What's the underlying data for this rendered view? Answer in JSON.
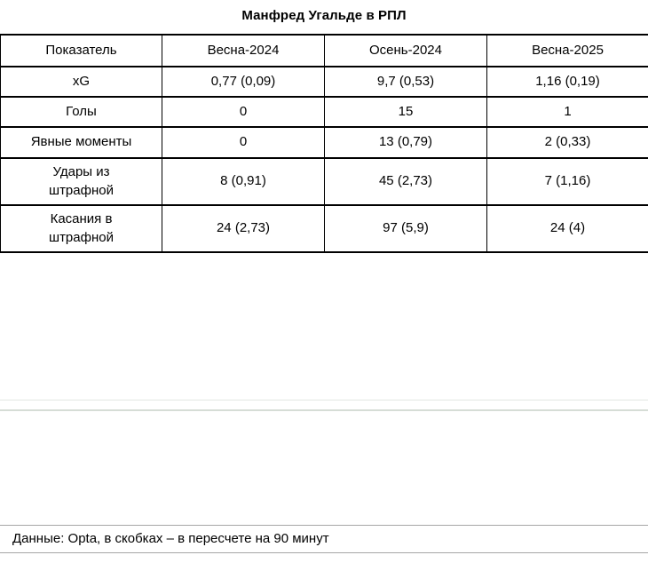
{
  "chart_data": {
    "type": "table",
    "title": "Манфред Угальде в РПЛ",
    "columns": [
      "Показатель",
      "Весна-2024",
      "Осень-2024",
      "Весна-2025"
    ],
    "rows": [
      {
        "label": "xG",
        "values": [
          "0,77 (0,09)",
          "9,7 (0,53)",
          "1,16 (0,19)"
        ]
      },
      {
        "label": "Голы",
        "values": [
          "0",
          "15",
          "1"
        ]
      },
      {
        "label": "Явные моменты",
        "values": [
          "0",
          "13 (0,79)",
          "2 (0,33)"
        ]
      },
      {
        "label": "Удары из\nштрафной",
        "values": [
          "8 (0,91)",
          "45 (2,73)",
          "7 (1,16)"
        ]
      },
      {
        "label": "Касания в\nштрафной",
        "values": [
          "24 (2,73)",
          "97 (5,9)",
          "24 (4)"
        ]
      }
    ],
    "footnote": "Данные: Opta, в скобках – в пересчете на 90 минут",
    "layout": {
      "grid": "on",
      "border_color": "#000000",
      "background": "#ffffff"
    }
  }
}
